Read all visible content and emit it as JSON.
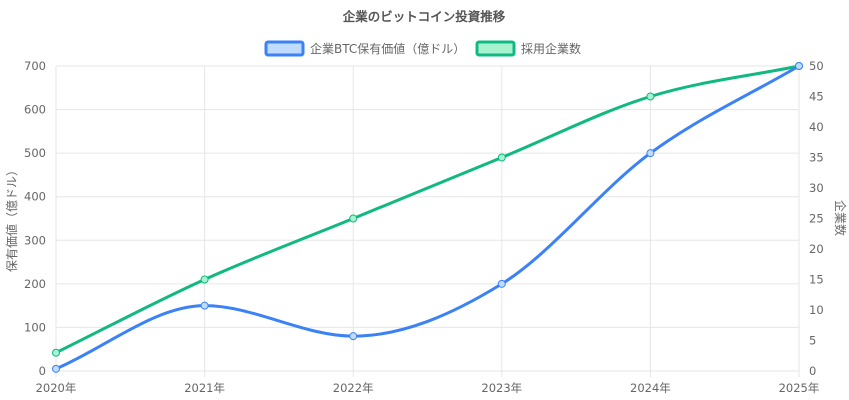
{
  "chart_data": {
    "type": "line",
    "title": "企業のビットコイン投資推移",
    "categories": [
      "2020年",
      "2021年",
      "2022年",
      "2023年",
      "2024年",
      "2025年"
    ],
    "series": [
      {
        "name": "企業BTC保有価値（億ドル）",
        "axis": "left",
        "color": "#3b82f6",
        "fill": "#bfdbfe",
        "values": [
          5,
          150,
          80,
          200,
          500,
          700
        ]
      },
      {
        "name": "採用企業数",
        "axis": "right",
        "color": "#10b981",
        "fill": "#a7f3d0",
        "values": [
          3,
          15,
          25,
          35,
          45,
          50
        ]
      }
    ],
    "y_left": {
      "label": "保有価値（億ドル）",
      "min": 0,
      "max": 700,
      "ticks": [
        "0",
        "100",
        "200",
        "300",
        "400",
        "500",
        "600",
        "700"
      ]
    },
    "y_right": {
      "label": "企業数",
      "min": 0,
      "max": 50,
      "ticks": [
        "0",
        "5",
        "10",
        "15",
        "20",
        "25",
        "30",
        "35",
        "40",
        "45",
        "50"
      ]
    },
    "grid": true,
    "legend_position": "top"
  }
}
